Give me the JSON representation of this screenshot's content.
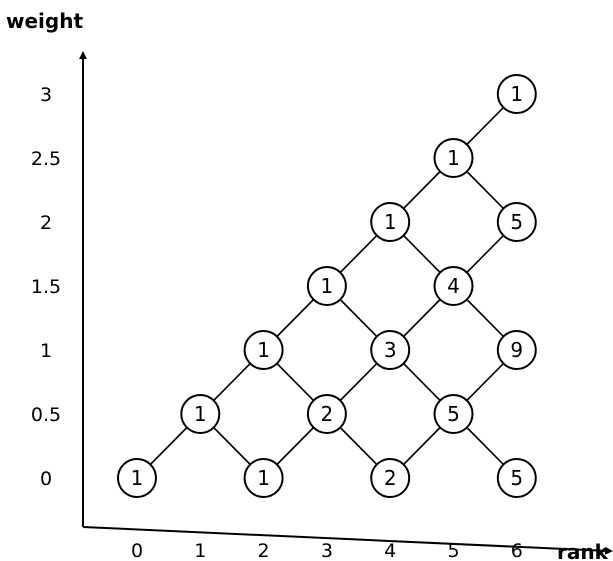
{
  "x_axis": {
    "title": "rank",
    "ticks": [
      "0",
      "1",
      "2",
      "3",
      "4",
      "5",
      "6"
    ]
  },
  "y_axis": {
    "title": "weight",
    "ticks": [
      "0",
      "0.5",
      "1",
      "1.5",
      "2",
      "2.5",
      "3"
    ]
  },
  "nodes": [
    {
      "id": "n00",
      "rank": 0,
      "weight": 0,
      "label": "1"
    },
    {
      "id": "n105",
      "rank": 1,
      "weight": 0.5,
      "label": "1"
    },
    {
      "id": "n20",
      "rank": 2,
      "weight": 0,
      "label": "1"
    },
    {
      "id": "n21",
      "rank": 2,
      "weight": 1,
      "label": "1"
    },
    {
      "id": "n305",
      "rank": 3,
      "weight": 0.5,
      "label": "2"
    },
    {
      "id": "n315",
      "rank": 3,
      "weight": 1.5,
      "label": "1"
    },
    {
      "id": "n40",
      "rank": 4,
      "weight": 0,
      "label": "2"
    },
    {
      "id": "n41",
      "rank": 4,
      "weight": 1,
      "label": "3"
    },
    {
      "id": "n42",
      "rank": 4,
      "weight": 2,
      "label": "1"
    },
    {
      "id": "n505",
      "rank": 5,
      "weight": 0.5,
      "label": "5"
    },
    {
      "id": "n515",
      "rank": 5,
      "weight": 1.5,
      "label": "4"
    },
    {
      "id": "n525",
      "rank": 5,
      "weight": 2.5,
      "label": "1"
    },
    {
      "id": "n60",
      "rank": 6,
      "weight": 0,
      "label": "5"
    },
    {
      "id": "n61",
      "rank": 6,
      "weight": 1,
      "label": "9"
    },
    {
      "id": "n62",
      "rank": 6,
      "weight": 2,
      "label": "5"
    },
    {
      "id": "n63",
      "rank": 6,
      "weight": 3,
      "label": "1"
    }
  ],
  "edges": [
    [
      "n00",
      "n105"
    ],
    [
      "n105",
      "n20"
    ],
    [
      "n105",
      "n21"
    ],
    [
      "n20",
      "n305"
    ],
    [
      "n21",
      "n305"
    ],
    [
      "n21",
      "n315"
    ],
    [
      "n305",
      "n40"
    ],
    [
      "n305",
      "n41"
    ],
    [
      "n315",
      "n41"
    ],
    [
      "n315",
      "n42"
    ],
    [
      "n40",
      "n505"
    ],
    [
      "n41",
      "n505"
    ],
    [
      "n41",
      "n515"
    ],
    [
      "n42",
      "n515"
    ],
    [
      "n42",
      "n525"
    ],
    [
      "n505",
      "n60"
    ],
    [
      "n505",
      "n61"
    ],
    [
      "n515",
      "n61"
    ],
    [
      "n515",
      "n62"
    ],
    [
      "n525",
      "n62"
    ],
    [
      "n525",
      "n63"
    ]
  ]
}
